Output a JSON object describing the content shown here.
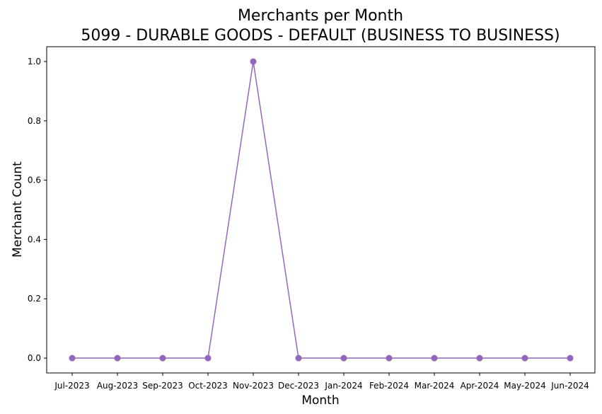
{
  "chart_data": {
    "type": "line",
    "title": "Merchants per Month",
    "subtitle": "5099 - DURABLE GOODS - DEFAULT (BUSINESS TO BUSINESS)",
    "xlabel": "Month",
    "ylabel": "Merchant Count",
    "categories": [
      "Jul-2023",
      "Aug-2023",
      "Sep-2023",
      "Oct-2023",
      "Nov-2023",
      "Dec-2023",
      "Jan-2024",
      "Feb-2024",
      "Mar-2024",
      "Apr-2024",
      "May-2024",
      "Jun-2024"
    ],
    "series": [
      {
        "values": [
          0,
          0,
          0,
          0,
          1,
          0,
          0,
          0,
          0,
          0,
          0,
          0
        ],
        "color": "#9467bd"
      }
    ],
    "ylim": [
      -0.05,
      1.05
    ],
    "yticks": [
      0.0,
      0.2,
      0.4,
      0.6,
      0.8,
      1.0
    ],
    "ytick_labels": [
      "0.0",
      "0.2",
      "0.4",
      "0.6",
      "0.8",
      "1.0"
    ],
    "grid": false,
    "legend": "none"
  }
}
